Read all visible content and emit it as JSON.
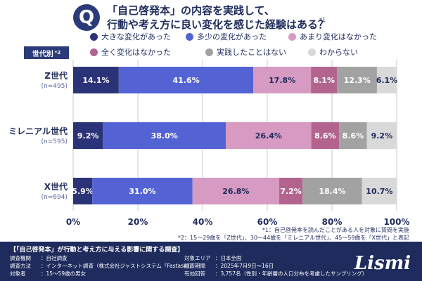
{
  "question": {
    "mark": "Q",
    "line1": "「自己啓発本」の内容を実践して、",
    "line2": "行動や考え方に良い変化を感じた経験はある？",
    "note": "*1"
  },
  "generation_label": {
    "text": "世代別",
    "sup": "*2"
  },
  "colors": {
    "s0": "#2b3378",
    "s1": "#5463d4",
    "s2": "#d79ac2",
    "s3": "#b3648e",
    "s4": "#a2a2a2",
    "s5": "#d9d9d9"
  },
  "chart_data": {
    "type": "bar",
    "orientation": "horizontal",
    "stacked": true,
    "categories": [
      {
        "name": "Z世代",
        "n": "(n=495)"
      },
      {
        "name": "ミレニアル世代",
        "n": "(n=595)"
      },
      {
        "name": "X世代",
        "n": "(n=694)"
      }
    ],
    "series": [
      {
        "name": "大きな変化があった",
        "values": [
          14.1,
          9.2,
          5.9
        ],
        "labels": [
          "14.1%",
          "9.2%",
          "5.9%"
        ]
      },
      {
        "name": "多少の変化があった",
        "values": [
          41.6,
          38.0,
          31.0
        ],
        "labels": [
          "41.6%",
          "38.0%",
          "31.0%"
        ]
      },
      {
        "name": "あまり変化はなかった",
        "values": [
          17.8,
          26.4,
          26.8
        ],
        "labels": [
          "17.8%",
          "26.4%",
          "26.8%"
        ]
      },
      {
        "name": "全く変化はなかった",
        "values": [
          8.1,
          8.6,
          7.2
        ],
        "labels": [
          "8.1%",
          "8.6%",
          "7.2%"
        ]
      },
      {
        "name": "実践したことはない",
        "values": [
          12.3,
          8.6,
          18.4
        ],
        "labels": [
          "12.3%",
          "8.6%",
          "18.4%"
        ]
      },
      {
        "name": "わからない",
        "values": [
          6.1,
          9.2,
          10.7
        ],
        "labels": [
          "6.1%",
          "9.2%",
          "10.7%"
        ]
      }
    ],
    "xlim": [
      0,
      100
    ],
    "xticks": [
      "0%",
      "20%",
      "40%",
      "60%",
      "80%",
      "100%"
    ],
    "grid": true,
    "legend_position": "top"
  },
  "notes": {
    "n1": "*1：自己啓発本を読んだことがある人を対象に質問を実施",
    "n2": "*2：15〜29歳を「Z世代」、30〜44歳を「ミレニアル世代」、45〜59歳を「X世代」と表記"
  },
  "footer": {
    "title": "【「自己啓発本」が行動と考え方に与える影響に関する調査】",
    "rows_left": [
      {
        "key": "調査機関",
        "value": "：自社調査"
      },
      {
        "key": "調査方法",
        "value": "：インターネット調査（株式会社ジャストシステム「Fastask」）"
      },
      {
        "key": "対象者",
        "value": "：15〜59歳の男女"
      }
    ],
    "rows_right": [
      {
        "key": "対象エリア",
        "value": "：日本全国"
      },
      {
        "key": "調査期間",
        "value": "：2025年7月9日〜16日"
      },
      {
        "key": "有効回答",
        "value": "：3,757名（性別・年齢層の人口分布を考慮したサンプリング）"
      }
    ],
    "logo": "Lismi"
  }
}
